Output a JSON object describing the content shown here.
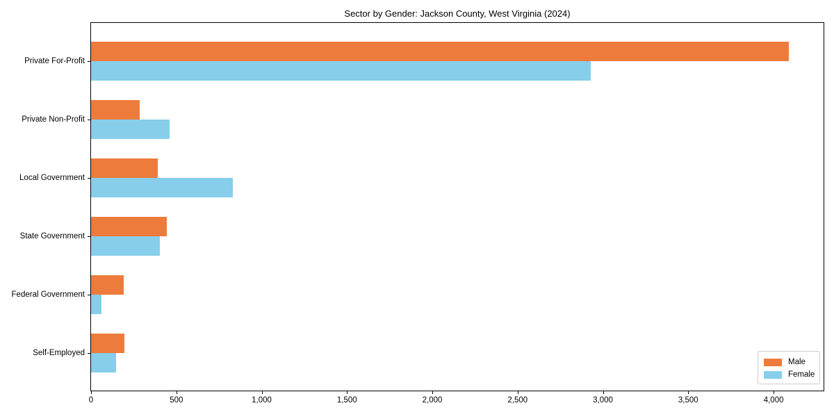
{
  "title": "Sector by Gender: Jackson County, West Virginia (2024)",
  "colors": {
    "male": "#ED7B3C",
    "female": "#87CEEB",
    "axis": "#000000",
    "legend_border": "#CCCCCC",
    "background": "#FFFFFF"
  },
  "chart_data": {
    "type": "bar",
    "orientation": "horizontal",
    "title": "Sector by Gender: Jackson County, West Virginia (2024)",
    "xlabel": "",
    "ylabel": "",
    "categories": [
      "Private For-Profit",
      "Private Non-Profit",
      "Local Government",
      "State Government",
      "Federal Government",
      "Self-Employed"
    ],
    "series": [
      {
        "name": "Male",
        "color": "#ED7B3C",
        "values": [
          4090,
          285,
          390,
          443,
          190,
          195
        ]
      },
      {
        "name": "Female",
        "color": "#87CEEB",
        "values": [
          2930,
          460,
          830,
          402,
          61,
          148
        ]
      }
    ],
    "xlim": [
      0,
      4293
    ],
    "xticks": [
      0,
      500,
      1000,
      1500,
      2000,
      2500,
      3000,
      3500,
      4000
    ],
    "xtick_labels": [
      "0",
      "500",
      "1,000",
      "1,500",
      "2,000",
      "2,500",
      "3,000",
      "3,500",
      "4,000"
    ],
    "grid": false,
    "legend_position": "lower right"
  },
  "legend": {
    "items": [
      {
        "label": "Male"
      },
      {
        "label": "Female"
      }
    ]
  }
}
